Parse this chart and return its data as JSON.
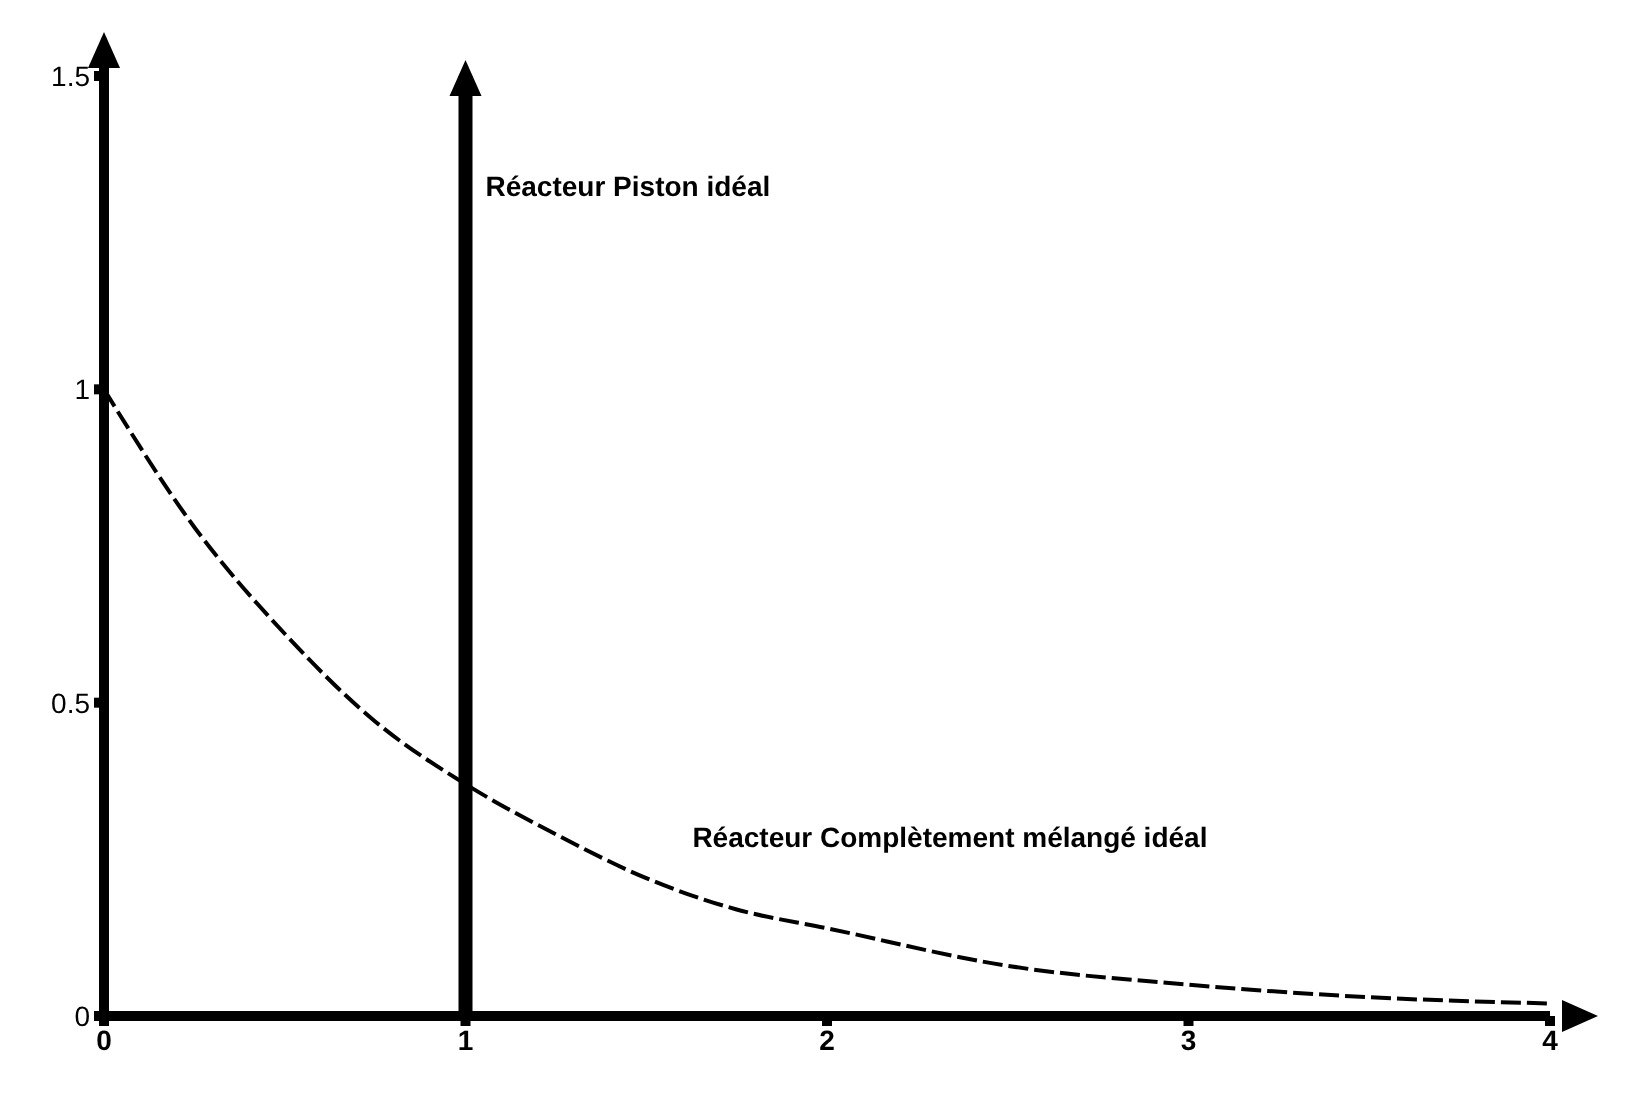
{
  "chart_data": {
    "type": "line",
    "x": [
      0,
      0.25,
      0.5,
      0.75,
      1,
      1.25,
      1.5,
      1.75,
      2,
      2.5,
      3,
      3.5,
      4
    ],
    "series": [
      {
        "name": "Réacteur Complètement mélangé idéal",
        "color": "#000000",
        "values": [
          1,
          0.78,
          0.61,
          0.47,
          0.37,
          0.29,
          0.22,
          0.17,
          0.14,
          0.08,
          0.05,
          0.03,
          0.02
        ]
      }
    ],
    "xlim": [
      0,
      4
    ],
    "ylim": [
      0,
      1.5
    ],
    "xticks": [
      0,
      1,
      2,
      3,
      4
    ],
    "yticks": [
      0,
      0.5,
      1,
      1.5
    ],
    "ref_lines": [
      {
        "axis": "x",
        "value": 1,
        "label": "Réacteur Piston idéal",
        "color": "#000000"
      }
    ],
    "grid": false,
    "legend": false,
    "marker": "none",
    "line_style": "dashed"
  }
}
